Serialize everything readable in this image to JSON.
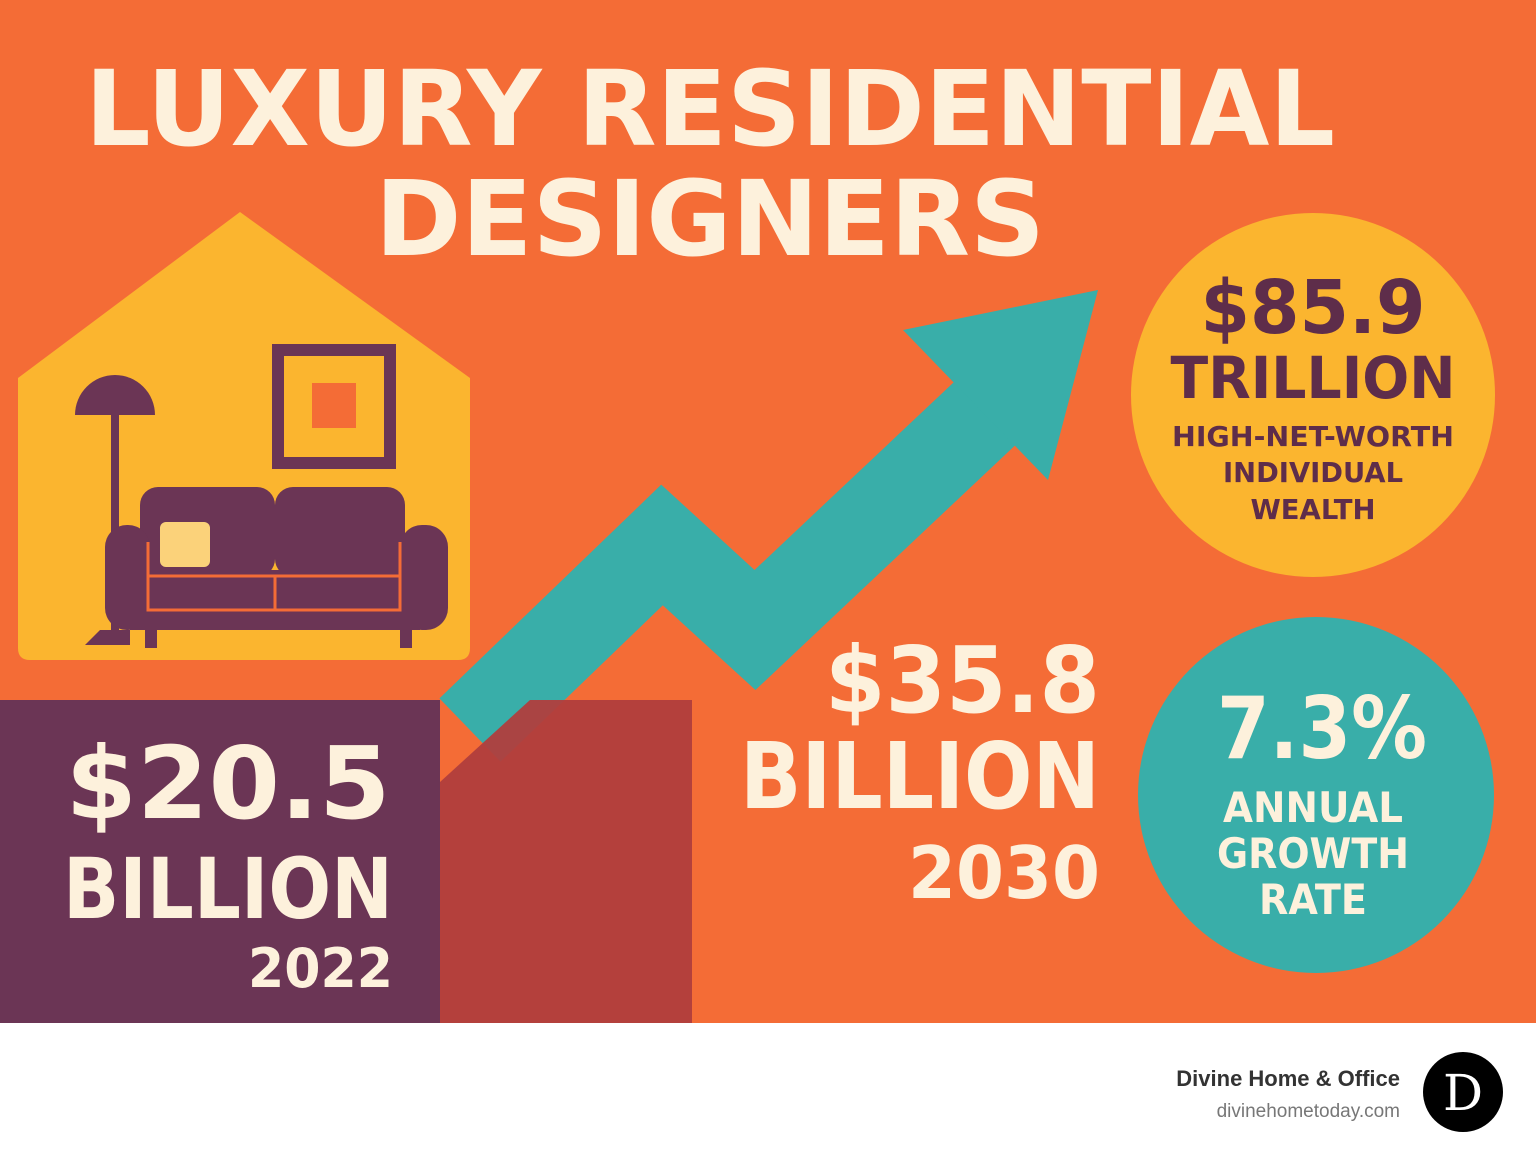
{
  "header": {
    "title": [
      "LUXURY RESIDENTIAL",
      "DESIGNERS"
    ]
  },
  "stats": [
    {
      "value": "$85.9",
      "unit": "TRILLION",
      "label": [
        "HIGH-NET-WORTH",
        "INDIVIDUAL",
        "WEALTH"
      ]
    },
    {
      "value": "$35.8",
      "unit": "BILLION",
      "label": [
        "2030"
      ]
    },
    {
      "value": "7.3%",
      "label": [
        "ANNUAL",
        "GROWTH",
        "RATE"
      ]
    },
    {
      "value": "$20.5",
      "unit": "BILLION",
      "label": [
        "2022"
      ]
    }
  ],
  "footer": {
    "brand": "Divine Home & Office",
    "url": "divinehometoday.com",
    "logo": "D"
  }
}
